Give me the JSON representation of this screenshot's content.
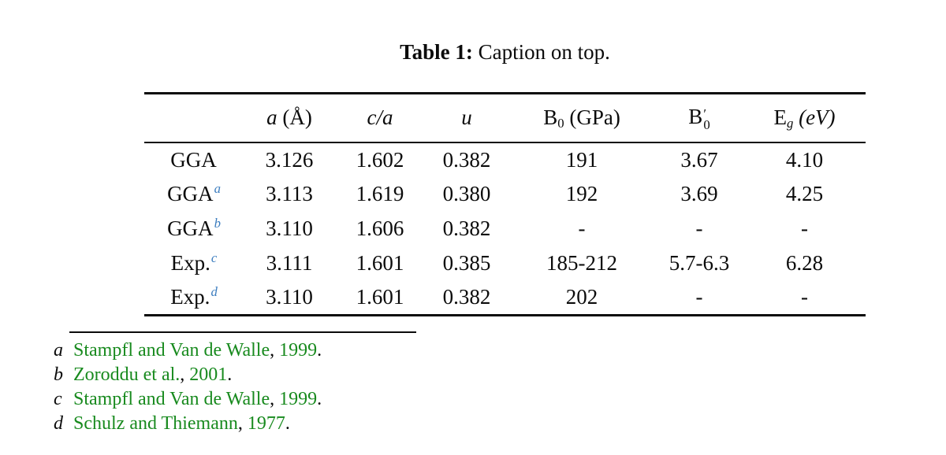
{
  "caption": {
    "label": "Table 1:",
    "text": " Caption on top."
  },
  "colors": {
    "text": "#0b0b0b",
    "footnote_link_blue": "#3c7dbf",
    "citation_green": "#188a1e"
  },
  "table": {
    "columns": [
      {
        "label": ""
      },
      {
        "base": "a",
        "unit": " (Å)"
      },
      {
        "base": "c/a"
      },
      {
        "base": "u"
      },
      {
        "base": "B",
        "sub": "0",
        "unit": " (GPa)"
      },
      {
        "base": "B",
        "sub": "0",
        "prime": "′"
      },
      {
        "base": "E",
        "sub": "g",
        "unit": " (eV)"
      }
    ],
    "rows": [
      {
        "label": "GGA",
        "sup": "",
        "cells": [
          "3.126",
          "1.602",
          "0.382",
          "191",
          "3.67",
          "4.10"
        ]
      },
      {
        "label": "GGA",
        "sup": "a",
        "cells": [
          "3.113",
          "1.619",
          "0.380",
          "192",
          "3.69",
          "4.25"
        ]
      },
      {
        "label": "GGA",
        "sup": "b",
        "cells": [
          "3.110",
          "1.606",
          "0.382",
          "-",
          "-",
          "-"
        ]
      },
      {
        "label": "Exp.",
        "sup": "c",
        "cells": [
          "3.111",
          "1.601",
          "0.385",
          "185-212",
          "5.7-6.3",
          "6.28"
        ]
      },
      {
        "label": "Exp.",
        "sup": "d",
        "cells": [
          "3.110",
          "1.601",
          "0.382",
          "202",
          "-",
          "-"
        ]
      }
    ]
  },
  "footnotes": [
    {
      "marker": "a",
      "citation": "Stampfl and Van de Walle",
      "sep": ", ",
      "year": "1999",
      "end": "."
    },
    {
      "marker": "b",
      "citation": "Zoroddu et al.",
      "sep": ", ",
      "year": "2001",
      "end": "."
    },
    {
      "marker": "c",
      "citation": "Stampfl and Van de Walle",
      "sep": ", ",
      "year": "1999",
      "end": "."
    },
    {
      "marker": "d",
      "citation": "Schulz and Thiemann",
      "sep": ", ",
      "year": "1977",
      "end": "."
    }
  ]
}
